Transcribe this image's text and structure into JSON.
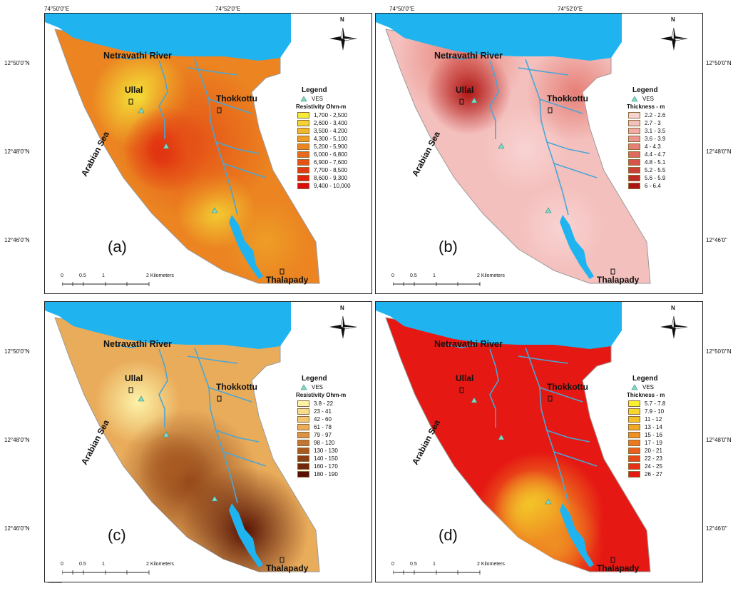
{
  "coords": {
    "lon_top": [
      "74°50'0\"E",
      "74°52'0\"E",
      "74°50'0\"E",
      "74°52'0\"E"
    ],
    "lat_left": [
      "12°50'0\"N",
      "12°48'0\"N",
      "12°46'0\"N",
      "12°50'0\"N",
      "12°48'0\"N",
      "12°46'0\"N"
    ],
    "lat_right": [
      "12°50'0\"N",
      "12°48'0\"N",
      "12°46'0\"",
      "12°50'0\"N",
      "12°48'0\"N",
      "12°46'0\""
    ]
  },
  "places": {
    "river": "Netravathi River",
    "sea": "Arabian Sea",
    "ullal": "Ullal",
    "thokkottu": "Thokkottu",
    "thalapady": "Thalapady"
  },
  "scalebar": {
    "ticks": [
      "0",
      "0.5",
      "1",
      "2 Kilometers"
    ]
  },
  "north": "N",
  "colors": {
    "water": "#1fb4f0",
    "stream": "#4aa6d6",
    "ves_marker": "#7fd9c7"
  },
  "panels": [
    {
      "label": "(a)",
      "legend": {
        "title": "Legend",
        "ves": "VES",
        "heading": "Resistivity Ohm-m",
        "classes": [
          {
            "range": "1,700 - 2,500",
            "color": "#f5ec3a"
          },
          {
            "range": "2,600 - 3,400",
            "color": "#f4d234"
          },
          {
            "range": "3,500 - 4,200",
            "color": "#f1b72d"
          },
          {
            "range": "4,300 - 5,100",
            "color": "#ee9d27"
          },
          {
            "range": "5,200 - 5,900",
            "color": "#eb8421"
          },
          {
            "range": "6,000 - 6,800",
            "color": "#e86a1b"
          },
          {
            "range": "6,900 - 7,600",
            "color": "#e55216"
          },
          {
            "range": "7,700 - 8,500",
            "color": "#e23a12"
          },
          {
            "range": "8,600 - 9,300",
            "color": "#df230e"
          },
          {
            "range": "9,400 - 10,000",
            "color": "#dc0a0a"
          }
        ]
      }
    },
    {
      "label": "(b)",
      "legend": {
        "title": "Legend",
        "ves": "VES",
        "heading": "Thickness - m",
        "classes": [
          {
            "range": "2.2 - 2.6",
            "color": "#f8d3d3"
          },
          {
            "range": "2.7 - 3",
            "color": "#f4c0bd"
          },
          {
            "range": "3.1 - 3.5",
            "color": "#f0aba6"
          },
          {
            "range": "3.6 - 3.9",
            "color": "#ec958e"
          },
          {
            "range": "4 - 4.3",
            "color": "#e67f76"
          },
          {
            "range": "4.4 - 4.7",
            "color": "#df6a5f"
          },
          {
            "range": "4.8 - 5.1",
            "color": "#d65449"
          },
          {
            "range": "5.2 - 5.5",
            "color": "#cc3f35"
          },
          {
            "range": "5.6 - 5.9",
            "color": "#c02a22"
          },
          {
            "range": "6 - 6.4",
            "color": "#b01412"
          }
        ]
      }
    },
    {
      "label": "(c)",
      "legend": {
        "title": "Legend",
        "ves": "VES",
        "heading": "Resistivity Ohm-m",
        "classes": [
          {
            "range": "3.8 - 22",
            "color": "#fdf3a8"
          },
          {
            "range": "23 - 41",
            "color": "#f8dc8c"
          },
          {
            "range": "42 - 60",
            "color": "#f2c674"
          },
          {
            "range": "61 - 78",
            "color": "#e9ac5b"
          },
          {
            "range": "79 - 97",
            "color": "#d99344"
          },
          {
            "range": "98 - 120",
            "color": "#c27530"
          },
          {
            "range": "130 - 130",
            "color": "#a85a21"
          },
          {
            "range": "140 - 150",
            "color": "#8c3f14"
          },
          {
            "range": "160 - 170",
            "color": "#70270a"
          },
          {
            "range": "180 - 190",
            "color": "#561103"
          }
        ]
      }
    },
    {
      "label": "(d)",
      "legend": {
        "title": "Legend",
        "ves": "VES",
        "heading": "Thickness - m",
        "classes": [
          {
            "range": "5.7 - 7.8",
            "color": "#f7f02e"
          },
          {
            "range": "7.9 - 10",
            "color": "#f5d82b"
          },
          {
            "range": "11 - 12",
            "color": "#f3c028"
          },
          {
            "range": "13 - 14",
            "color": "#f1a825"
          },
          {
            "range": "15 - 16",
            "color": "#ef9022"
          },
          {
            "range": "17 - 19",
            "color": "#ed781f"
          },
          {
            "range": "20 - 21",
            "color": "#eb601c"
          },
          {
            "range": "22 - 23",
            "color": "#e94819"
          },
          {
            "range": "24 - 25",
            "color": "#e73016"
          },
          {
            "range": "26 - 27",
            "color": "#e51813"
          }
        ]
      }
    }
  ]
}
